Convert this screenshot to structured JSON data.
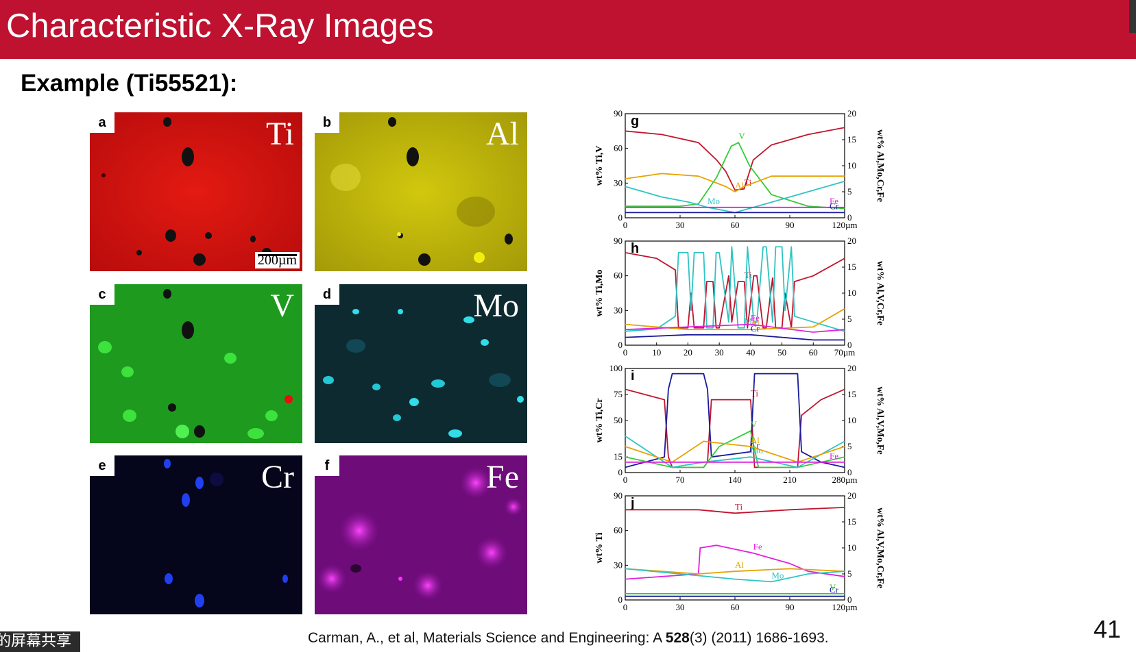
{
  "slide": {
    "title": "Characteristic X-Ray Images",
    "subtitle": "Example (Ti55521):",
    "page_number": "41",
    "accent_color": "#be1230"
  },
  "citation": {
    "pre": "Carman, A., et al, Materials Science and Engineering: A ",
    "volume": "528",
    "post": "(3) (2011) 1686-1693."
  },
  "overlay": {
    "label": "的屏幕共享"
  },
  "maps": [
    {
      "letter": "a",
      "element": "Ti",
      "color": "#e01010",
      "scale_label": "200µm"
    },
    {
      "letter": "b",
      "element": "Al",
      "color": "#c9c10c",
      "scale_label": ""
    },
    {
      "letter": "c",
      "element": "V",
      "color": "#1aa21a",
      "scale_label": ""
    },
    {
      "letter": "d",
      "element": "Mo",
      "color": "#0a8aa0",
      "scale_label": ""
    },
    {
      "letter": "e",
      "element": "Cr",
      "color": "#0a0a4a",
      "scale_label": ""
    },
    {
      "letter": "f",
      "element": "Fe",
      "color": "#7a0f86",
      "scale_label": ""
    }
  ],
  "chart_data": [
    {
      "type": "line",
      "panel": "g",
      "ylabel": "wt% Ti,V",
      "y2label": "wt% Al,Mo,Cr,Fe",
      "xlim": [
        0,
        120
      ],
      "xticks": [
        "0",
        "30",
        "60",
        "90",
        "120µm"
      ],
      "ylim": [
        0,
        90
      ],
      "yticks": [
        "0",
        "30",
        "60",
        "90"
      ],
      "y2lim": [
        0,
        20
      ],
      "y2ticks": [
        "0",
        "5",
        "10",
        "15",
        "20"
      ],
      "series": [
        {
          "name": "Ti",
          "axis": "left",
          "color": "#c0152e",
          "x": [
            0,
            20,
            40,
            50,
            55,
            60,
            65,
            70,
            80,
            100,
            120
          ],
          "y": [
            75,
            72,
            65,
            50,
            40,
            24,
            25,
            50,
            63,
            72,
            78
          ]
        },
        {
          "name": "V",
          "axis": "left",
          "color": "#33cc33",
          "x": [
            0,
            30,
            40,
            50,
            58,
            62,
            68,
            80,
            100,
            120
          ],
          "y": [
            10,
            10,
            12,
            35,
            62,
            65,
            45,
            20,
            10,
            8
          ]
        },
        {
          "name": "Al",
          "axis": "right",
          "color": "#e6a300",
          "x": [
            0,
            20,
            40,
            55,
            60,
            65,
            80,
            100,
            120
          ],
          "y": [
            7.5,
            8.5,
            8,
            6,
            5,
            6,
            8,
            8,
            8
          ]
        },
        {
          "name": "Mo",
          "axis": "right",
          "color": "#2ec4c4",
          "x": [
            0,
            10,
            20,
            35,
            45,
            60,
            80,
            100,
            120
          ],
          "y": [
            6,
            5,
            4,
            3,
            2,
            1,
            3,
            5,
            7
          ]
        },
        {
          "name": "Fe",
          "axis": "right",
          "color": "#e020e0",
          "x": [
            0,
            120
          ],
          "y": [
            2,
            2
          ]
        },
        {
          "name": "Cr",
          "axis": "right",
          "color": "#1a1a9a",
          "x": [
            0,
            120
          ],
          "y": [
            1,
            1
          ]
        }
      ]
    },
    {
      "type": "line",
      "panel": "h",
      "ylabel": "wt% Ti,Mo",
      "y2label": "wt% Al,V,Cr,Fe",
      "xlim": [
        0,
        70
      ],
      "xticks": [
        "0",
        "10",
        "20",
        "30",
        "40",
        "50",
        "60",
        "70µm"
      ],
      "ylim": [
        0,
        90
      ],
      "yticks": [
        "0",
        "30",
        "60",
        "90"
      ],
      "y2lim": [
        0,
        20
      ],
      "y2ticks": [
        "0",
        "5",
        "10",
        "15",
        "20"
      ],
      "series": [
        {
          "name": "Ti",
          "axis": "left",
          "color": "#c0152e",
          "x": [
            0,
            10,
            16,
            17,
            18,
            20,
            21,
            22,
            25,
            26,
            28,
            29,
            30,
            33,
            34,
            36,
            38,
            39,
            41,
            42,
            44,
            45,
            47,
            48,
            50,
            51,
            53,
            54,
            60,
            70
          ],
          "y": [
            80,
            75,
            65,
            15,
            15,
            15,
            45,
            15,
            15,
            55,
            55,
            15,
            15,
            60,
            20,
            55,
            55,
            15,
            60,
            60,
            15,
            15,
            58,
            15,
            15,
            45,
            15,
            55,
            60,
            75
          ]
        },
        {
          "name": "Mo",
          "axis": "left",
          "color": "#2ec4c4",
          "x": [
            0,
            10,
            16,
            17,
            18,
            20,
            21,
            22,
            25,
            26,
            28,
            29,
            30,
            33,
            34,
            36,
            38,
            39,
            41,
            42,
            44,
            45,
            47,
            48,
            50,
            51,
            53,
            54,
            60,
            70
          ],
          "y": [
            12,
            14,
            25,
            80,
            80,
            80,
            30,
            80,
            80,
            15,
            15,
            80,
            80,
            20,
            85,
            15,
            15,
            85,
            20,
            20,
            85,
            85,
            20,
            85,
            85,
            30,
            85,
            25,
            20,
            12
          ]
        },
        {
          "name": "Al",
          "axis": "right",
          "color": "#e6a300",
          "x": [
            0,
            20,
            40,
            60,
            70
          ],
          "y": [
            4,
            3,
            3,
            3.5,
            7
          ]
        },
        {
          "name": "Fe",
          "axis": "right",
          "color": "#e020e0",
          "x": [
            0,
            20,
            40,
            60,
            70
          ],
          "y": [
            3,
            3.5,
            4,
            2.5,
            3
          ]
        },
        {
          "name": "Cr",
          "axis": "right",
          "color": "#1a1a9a",
          "x": [
            0,
            20,
            40,
            60,
            70
          ],
          "y": [
            1.5,
            2,
            2,
            1,
            1
          ]
        }
      ]
    },
    {
      "type": "line",
      "panel": "i",
      "ylabel": "wt% Ti,Cr",
      "y2label": "wt% Al,V,Mo,Fe",
      "xlim": [
        0,
        280
      ],
      "xticks": [
        "0",
        "70",
        "140",
        "210",
        "280µm"
      ],
      "ylim": [
        0,
        100
      ],
      "yticks": [
        "0",
        "15",
        "50",
        "75",
        "100"
      ],
      "y2lim": [
        0,
        20
      ],
      "y2ticks": [
        "0",
        "5",
        "10",
        "15",
        "20"
      ],
      "series": [
        {
          "name": "Ti",
          "axis": "left",
          "color": "#c0152e",
          "x": [
            0,
            50,
            55,
            60,
            100,
            105,
            110,
            160,
            165,
            220,
            225,
            250,
            280
          ],
          "y": [
            80,
            70,
            15,
            5,
            5,
            10,
            70,
            70,
            5,
            5,
            55,
            70,
            80
          ]
        },
        {
          "name": "Cr",
          "axis": "left",
          "color": "#1a1a9a",
          "x": [
            0,
            50,
            55,
            60,
            100,
            105,
            110,
            160,
            165,
            220,
            225,
            250,
            280
          ],
          "y": [
            5,
            15,
            80,
            95,
            95,
            80,
            15,
            20,
            95,
            95,
            20,
            10,
            5
          ]
        },
        {
          "name": "V",
          "axis": "right",
          "color": "#33cc33",
          "x": [
            0,
            60,
            100,
            120,
            160,
            170,
            220,
            280
          ],
          "y": [
            3,
            1,
            1,
            5,
            8,
            1,
            1,
            3
          ]
        },
        {
          "name": "Mo",
          "axis": "right",
          "color": "#2ec4c4",
          "x": [
            0,
            60,
            100,
            160,
            220,
            280
          ],
          "y": [
            7,
            1,
            2,
            3,
            1,
            6
          ]
        },
        {
          "name": "Al",
          "axis": "right",
          "color": "#e6a300",
          "x": [
            0,
            60,
            100,
            160,
            220,
            280
          ],
          "y": [
            5,
            2,
            6,
            5,
            2,
            5
          ]
        },
        {
          "name": "Fe",
          "axis": "right",
          "color": "#e020e0",
          "x": [
            0,
            280
          ],
          "y": [
            2,
            2
          ]
        }
      ]
    },
    {
      "type": "line",
      "panel": "j",
      "ylabel": "wt% Ti",
      "y2label": "wt% Al,V,Mo,Cr,Fe",
      "xlim": [
        0,
        120
      ],
      "xticks": [
        "0",
        "30",
        "60",
        "90",
        "120µm"
      ],
      "ylim": [
        0,
        90
      ],
      "yticks": [
        "0",
        "30",
        "60",
        "90"
      ],
      "y2lim": [
        0,
        20
      ],
      "y2ticks": [
        "0",
        "5",
        "10",
        "15",
        "20"
      ],
      "series": [
        {
          "name": "Ti",
          "axis": "left",
          "color": "#c0152e",
          "x": [
            0,
            40,
            60,
            90,
            120
          ],
          "y": [
            78,
            78,
            75,
            78,
            80
          ]
        },
        {
          "name": "Fe",
          "axis": "right",
          "color": "#e020e0",
          "x": [
            0,
            40,
            41,
            50,
            70,
            90,
            100,
            120
          ],
          "y": [
            4,
            5,
            10,
            10.5,
            9,
            7,
            5.5,
            4.5
          ]
        },
        {
          "name": "Al",
          "axis": "right",
          "color": "#e6a300",
          "x": [
            0,
            20,
            40,
            60,
            90,
            120
          ],
          "y": [
            6,
            5.5,
            5,
            5.5,
            6,
            5.5
          ]
        },
        {
          "name": "Mo",
          "axis": "right",
          "color": "#2ec4c4",
          "x": [
            0,
            30,
            60,
            80,
            100,
            120
          ],
          "y": [
            6,
            5,
            4,
            3.5,
            5,
            5.5
          ]
        },
        {
          "name": "V",
          "axis": "right",
          "color": "#33cc33",
          "x": [
            0,
            120
          ],
          "y": [
            1.2,
            1.2
          ]
        },
        {
          "name": "Cr",
          "axis": "right",
          "color": "#1a1a9a",
          "x": [
            0,
            120
          ],
          "y": [
            0.7,
            0.7
          ]
        }
      ]
    }
  ]
}
